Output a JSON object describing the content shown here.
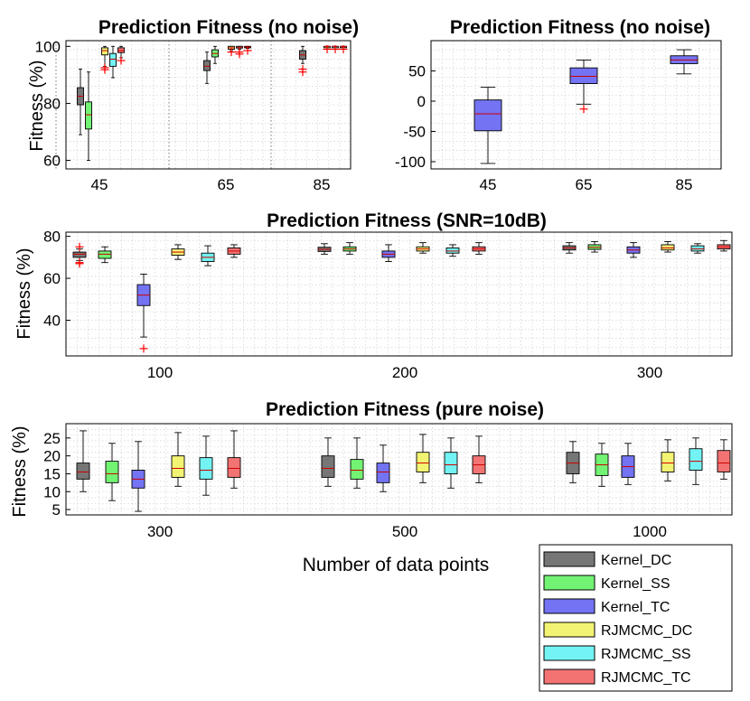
{
  "colors": {
    "Kernel_DC": "#767676",
    "Kernel_SS": "#73f373",
    "Kernel_TC": "#7373f3",
    "RJMCMC_DC": "#f3f373",
    "RJMCMC_SS": "#73f3f3",
    "RJMCMC_TC": "#f37373",
    "outlier": "#ff0000"
  },
  "legend": [
    "Kernel_DC",
    "Kernel_SS",
    "Kernel_TC",
    "RJMCMC_DC",
    "RJMCMC_SS",
    "RJMCMC_TC"
  ],
  "chart_data": [
    {
      "id": "p1",
      "type": "boxplot",
      "title": "Prediction Fitness (no noise)",
      "ylabel": "Fitness (%)",
      "xlabel": "",
      "ylim": [
        57,
        102
      ],
      "yticks": [
        "60",
        "80",
        "100"
      ],
      "yticks_values": [
        60,
        80,
        100
      ],
      "groups": [
        "45",
        "65",
        "85"
      ],
      "series": [
        "Kernel_DC",
        "Kernel_SS",
        "Kernel_TC",
        "RJMCMC_DC",
        "RJMCMC_SS",
        "RJMCMC_TC"
      ],
      "boxes": [
        {
          "group": 0,
          "series": 0,
          "whisker_low": 69,
          "q1": 79.5,
          "median": 82.5,
          "q3": 85.5,
          "whisker_high": 92,
          "outliers": []
        },
        {
          "group": 0,
          "series": 1,
          "whisker_low": 60,
          "q1": 71,
          "median": 76,
          "q3": 80.5,
          "whisker_high": 91,
          "outliers": []
        },
        {
          "group": 0,
          "series": 2,
          "whisker_low": null,
          "q1": null,
          "median": null,
          "q3": null,
          "whisker_high": null,
          "outliers": []
        },
        {
          "group": 0,
          "series": 3,
          "whisker_low": 93,
          "q1": 97,
          "median": 98.5,
          "q3": 99.5,
          "whisker_high": 100,
          "outliers": [
            92.5,
            91.8
          ]
        },
        {
          "group": 0,
          "series": 4,
          "whisker_low": 89,
          "q1": 93,
          "median": 95.5,
          "q3": 97.5,
          "whisker_high": 100,
          "outliers": []
        },
        {
          "group": 0,
          "series": 5,
          "whisker_low": 96,
          "q1": 97.8,
          "median": 98.5,
          "q3": 99.5,
          "whisker_high": 100,
          "outliers": [
            95
          ]
        },
        {
          "group": 1,
          "series": 0,
          "whisker_low": 87,
          "q1": 91.5,
          "median": 93,
          "q3": 95,
          "whisker_high": 98,
          "outliers": []
        },
        {
          "group": 1,
          "series": 1,
          "whisker_low": 94,
          "q1": 96.3,
          "median": 97.5,
          "q3": 98.8,
          "whisker_high": 100,
          "outliers": []
        },
        {
          "group": 1,
          "series": 2,
          "whisker_low": null,
          "q1": null,
          "median": null,
          "q3": null,
          "whisker_high": null,
          "outliers": []
        },
        {
          "group": 1,
          "series": 3,
          "whisker_low": 98.5,
          "q1": 99,
          "median": 99.5,
          "q3": 100,
          "whisker_high": 100,
          "outliers": [
            98
          ]
        },
        {
          "group": 1,
          "series": 4,
          "whisker_low": 99,
          "q1": 99.4,
          "median": 99.7,
          "q3": 100,
          "whisker_high": 100,
          "outliers": [
            98,
            97.3
          ]
        },
        {
          "group": 1,
          "series": 5,
          "whisker_low": 99.3,
          "q1": 99.5,
          "median": 99.8,
          "q3": 100,
          "whisker_high": 100,
          "outliers": [
            98.5
          ]
        },
        {
          "group": 2,
          "series": 0,
          "whisker_low": 94,
          "q1": 95.5,
          "median": 97,
          "q3": 98.5,
          "whisker_high": 100,
          "outliers": [
            92,
            91
          ]
        },
        {
          "group": 2,
          "series": 1,
          "whisker_low": null,
          "q1": null,
          "median": null,
          "q3": null,
          "whisker_high": null,
          "outliers": []
        },
        {
          "group": 2,
          "series": 2,
          "whisker_low": null,
          "q1": null,
          "median": null,
          "q3": null,
          "whisker_high": null,
          "outliers": []
        },
        {
          "group": 2,
          "series": 3,
          "whisker_low": 99.8,
          "q1": 99.9,
          "median": 100,
          "q3": 100,
          "whisker_high": 100,
          "outliers": [
            99
          ]
        },
        {
          "group": 2,
          "series": 4,
          "whisker_low": 99.8,
          "q1": 99.9,
          "median": 100,
          "q3": 100,
          "whisker_high": 100,
          "outliers": [
            99
          ]
        },
        {
          "group": 2,
          "series": 5,
          "whisker_low": 99.8,
          "q1": 99.9,
          "median": 100,
          "q3": 100,
          "whisker_high": 100,
          "outliers": [
            99
          ]
        }
      ]
    },
    {
      "id": "p2",
      "type": "boxplot",
      "title": "Prediction Fitness (no noise)",
      "ylabel": "",
      "xlabel": "",
      "ylim": [
        -112,
        100
      ],
      "yticks": [
        "50",
        "0",
        "-50",
        "-100"
      ],
      "yticks_values": [
        50,
        0,
        -50,
        -100
      ],
      "groups": [
        "45",
        "65",
        "85"
      ],
      "series": [
        "Kernel_TC"
      ],
      "boxes": [
        {
          "group": 0,
          "series": 0,
          "whisker_low": -103,
          "q1": -49,
          "median": -21,
          "q3": 2,
          "whisker_high": 23,
          "outliers": []
        },
        {
          "group": 1,
          "series": 0,
          "whisker_low": -5,
          "q1": 29,
          "median": 41,
          "q3": 55,
          "whisker_high": 68,
          "outliers": [
            -13
          ]
        },
        {
          "group": 2,
          "series": 0,
          "whisker_low": 45,
          "q1": 62,
          "median": 68,
          "q3": 75,
          "whisker_high": 85,
          "outliers": []
        }
      ]
    },
    {
      "id": "p3",
      "type": "boxplot",
      "title": "Prediction Fitness (SNR=10dB)",
      "ylabel": "Fitness (%)",
      "xlabel": "",
      "ylim": [
        23,
        82
      ],
      "yticks": [
        "40",
        "60",
        "80"
      ],
      "yticks_values": [
        40,
        60,
        80
      ],
      "groups": [
        "100",
        "200",
        "300"
      ],
      "series": [
        "Kernel_DC",
        "Kernel_SS",
        "Kernel_TC",
        "RJMCMC_DC",
        "RJMCMC_SS",
        "RJMCMC_TC"
      ],
      "boxes": [
        {
          "group": 0,
          "series": 0,
          "whisker_low": 68.5,
          "q1": 70,
          "median": 71.5,
          "q3": 72.5,
          "whisker_high": 74,
          "outliers": [
            75,
            67.5,
            67
          ]
        },
        {
          "group": 0,
          "series": 1,
          "whisker_low": 67.5,
          "q1": 69.5,
          "median": 71.5,
          "q3": 73,
          "whisker_high": 75,
          "outliers": []
        },
        {
          "group": 0,
          "series": 2,
          "whisker_low": 32,
          "q1": 47,
          "median": 52,
          "q3": 57,
          "whisker_high": 62,
          "outliers": [
            26.5
          ]
        },
        {
          "group": 0,
          "series": 3,
          "whisker_low": 69,
          "q1": 71,
          "median": 72.5,
          "q3": 74,
          "whisker_high": 76,
          "outliers": []
        },
        {
          "group": 0,
          "series": 4,
          "whisker_low": 66,
          "q1": 68,
          "median": 70,
          "q3": 72,
          "whisker_high": 75.5,
          "outliers": []
        },
        {
          "group": 0,
          "series": 5,
          "whisker_low": 70,
          "q1": 71.5,
          "median": 73,
          "q3": 74.5,
          "whisker_high": 76,
          "outliers": []
        },
        {
          "group": 1,
          "series": 0,
          "whisker_low": 71.5,
          "q1": 72.8,
          "median": 73.8,
          "q3": 74.8,
          "whisker_high": 76.5,
          "outliers": []
        },
        {
          "group": 1,
          "series": 1,
          "whisker_low": 71.5,
          "q1": 73,
          "median": 74,
          "q3": 75,
          "whisker_high": 77,
          "outliers": []
        },
        {
          "group": 1,
          "series": 2,
          "whisker_low": 68,
          "q1": 70,
          "median": 71.5,
          "q3": 73,
          "whisker_high": 76,
          "outliers": []
        },
        {
          "group": 1,
          "series": 3,
          "whisker_low": 72,
          "q1": 73,
          "median": 74,
          "q3": 75,
          "whisker_high": 77,
          "outliers": []
        },
        {
          "group": 1,
          "series": 4,
          "whisker_low": 70.5,
          "q1": 72,
          "median": 73,
          "q3": 74.5,
          "whisker_high": 76,
          "outliers": []
        },
        {
          "group": 1,
          "series": 5,
          "whisker_low": 71.5,
          "q1": 73,
          "median": 74,
          "q3": 75,
          "whisker_high": 77,
          "outliers": []
        },
        {
          "group": 2,
          "series": 0,
          "whisker_low": 72,
          "q1": 73.5,
          "median": 74.5,
          "q3": 75.5,
          "whisker_high": 77,
          "outliers": []
        },
        {
          "group": 2,
          "series": 1,
          "whisker_low": 72.5,
          "q1": 73.8,
          "median": 74.8,
          "q3": 76,
          "whisker_high": 77.5,
          "outliers": []
        },
        {
          "group": 2,
          "series": 2,
          "whisker_low": 70,
          "q1": 72,
          "median": 73.5,
          "q3": 75,
          "whisker_high": 77,
          "outliers": []
        },
        {
          "group": 2,
          "series": 3,
          "whisker_low": 72.5,
          "q1": 73.5,
          "median": 74.5,
          "q3": 76,
          "whisker_high": 77.5,
          "outliers": []
        },
        {
          "group": 2,
          "series": 4,
          "whisker_low": 72,
          "q1": 73,
          "median": 74,
          "q3": 75.5,
          "whisker_high": 76.5,
          "outliers": []
        },
        {
          "group": 2,
          "series": 5,
          "whisker_low": 73,
          "q1": 74,
          "median": 75,
          "q3": 76,
          "whisker_high": 78,
          "outliers": []
        }
      ]
    },
    {
      "id": "p4",
      "type": "boxplot",
      "title": "Prediction Fitness (pure noise)",
      "ylabel": "Fitness (%)",
      "xlabel": "Number of data points",
      "ylim": [
        3.5,
        29
      ],
      "yticks": [
        "5",
        "10",
        "15",
        "20",
        "25"
      ],
      "yticks_values": [
        5,
        10,
        15,
        20,
        25
      ],
      "groups": [
        "300",
        "500",
        "1000"
      ],
      "series": [
        "Kernel_DC",
        "Kernel_SS",
        "Kernel_TC",
        "RJMCMC_DC",
        "RJMCMC_SS",
        "RJMCMC_TC"
      ],
      "boxes": [
        {
          "group": 0,
          "series": 0,
          "whisker_low": 10,
          "q1": 13.5,
          "median": 15.5,
          "q3": 18,
          "whisker_high": 27,
          "outliers": []
        },
        {
          "group": 0,
          "series": 1,
          "whisker_low": 7.5,
          "q1": 12.5,
          "median": 15,
          "q3": 18.5,
          "whisker_high": 23.5,
          "outliers": []
        },
        {
          "group": 0,
          "series": 2,
          "whisker_low": 4.5,
          "q1": 11,
          "median": 13.5,
          "q3": 16,
          "whisker_high": 24,
          "outliers": []
        },
        {
          "group": 0,
          "series": 3,
          "whisker_low": 11.5,
          "q1": 14,
          "median": 16.5,
          "q3": 20,
          "whisker_high": 26.5,
          "outliers": []
        },
        {
          "group": 0,
          "series": 4,
          "whisker_low": 9,
          "q1": 13.5,
          "median": 16,
          "q3": 19.5,
          "whisker_high": 25.5,
          "outliers": []
        },
        {
          "group": 0,
          "series": 5,
          "whisker_low": 11,
          "q1": 14,
          "median": 16.5,
          "q3": 19.5,
          "whisker_high": 27,
          "outliers": []
        },
        {
          "group": 1,
          "series": 0,
          "whisker_low": 11.5,
          "q1": 14,
          "median": 16.5,
          "q3": 20,
          "whisker_high": 25,
          "outliers": []
        },
        {
          "group": 1,
          "series": 1,
          "whisker_low": 11,
          "q1": 13.5,
          "median": 16,
          "q3": 19,
          "whisker_high": 25,
          "outliers": []
        },
        {
          "group": 1,
          "series": 2,
          "whisker_low": 10,
          "q1": 12.5,
          "median": 15.5,
          "q3": 18,
          "whisker_high": 23,
          "outliers": []
        },
        {
          "group": 1,
          "series": 3,
          "whisker_low": 12.5,
          "q1": 15.5,
          "median": 18,
          "q3": 21,
          "whisker_high": 26,
          "outliers": []
        },
        {
          "group": 1,
          "series": 4,
          "whisker_low": 11,
          "q1": 15,
          "median": 17.5,
          "q3": 21,
          "whisker_high": 25,
          "outliers": []
        },
        {
          "group": 1,
          "series": 5,
          "whisker_low": 12.5,
          "q1": 15,
          "median": 17.5,
          "q3": 20,
          "whisker_high": 25.5,
          "outliers": []
        },
        {
          "group": 2,
          "series": 0,
          "whisker_low": 12.5,
          "q1": 15,
          "median": 18,
          "q3": 21,
          "whisker_high": 24,
          "outliers": []
        },
        {
          "group": 2,
          "series": 1,
          "whisker_low": 11.5,
          "q1": 14.5,
          "median": 17.5,
          "q3": 20.5,
          "whisker_high": 23.5,
          "outliers": []
        },
        {
          "group": 2,
          "series": 2,
          "whisker_low": 12,
          "q1": 14,
          "median": 17,
          "q3": 20,
          "whisker_high": 23.5,
          "outliers": []
        },
        {
          "group": 2,
          "series": 3,
          "whisker_low": 13,
          "q1": 15.5,
          "median": 18,
          "q3": 21,
          "whisker_high": 24.5,
          "outliers": []
        },
        {
          "group": 2,
          "series": 4,
          "whisker_low": 12,
          "q1": 16,
          "median": 18.5,
          "q3": 22,
          "whisker_high": 25,
          "outliers": []
        },
        {
          "group": 2,
          "series": 5,
          "whisker_low": 13.5,
          "q1": 15.5,
          "median": 18,
          "q3": 21.5,
          "whisker_high": 24.5,
          "outliers": []
        }
      ]
    }
  ]
}
